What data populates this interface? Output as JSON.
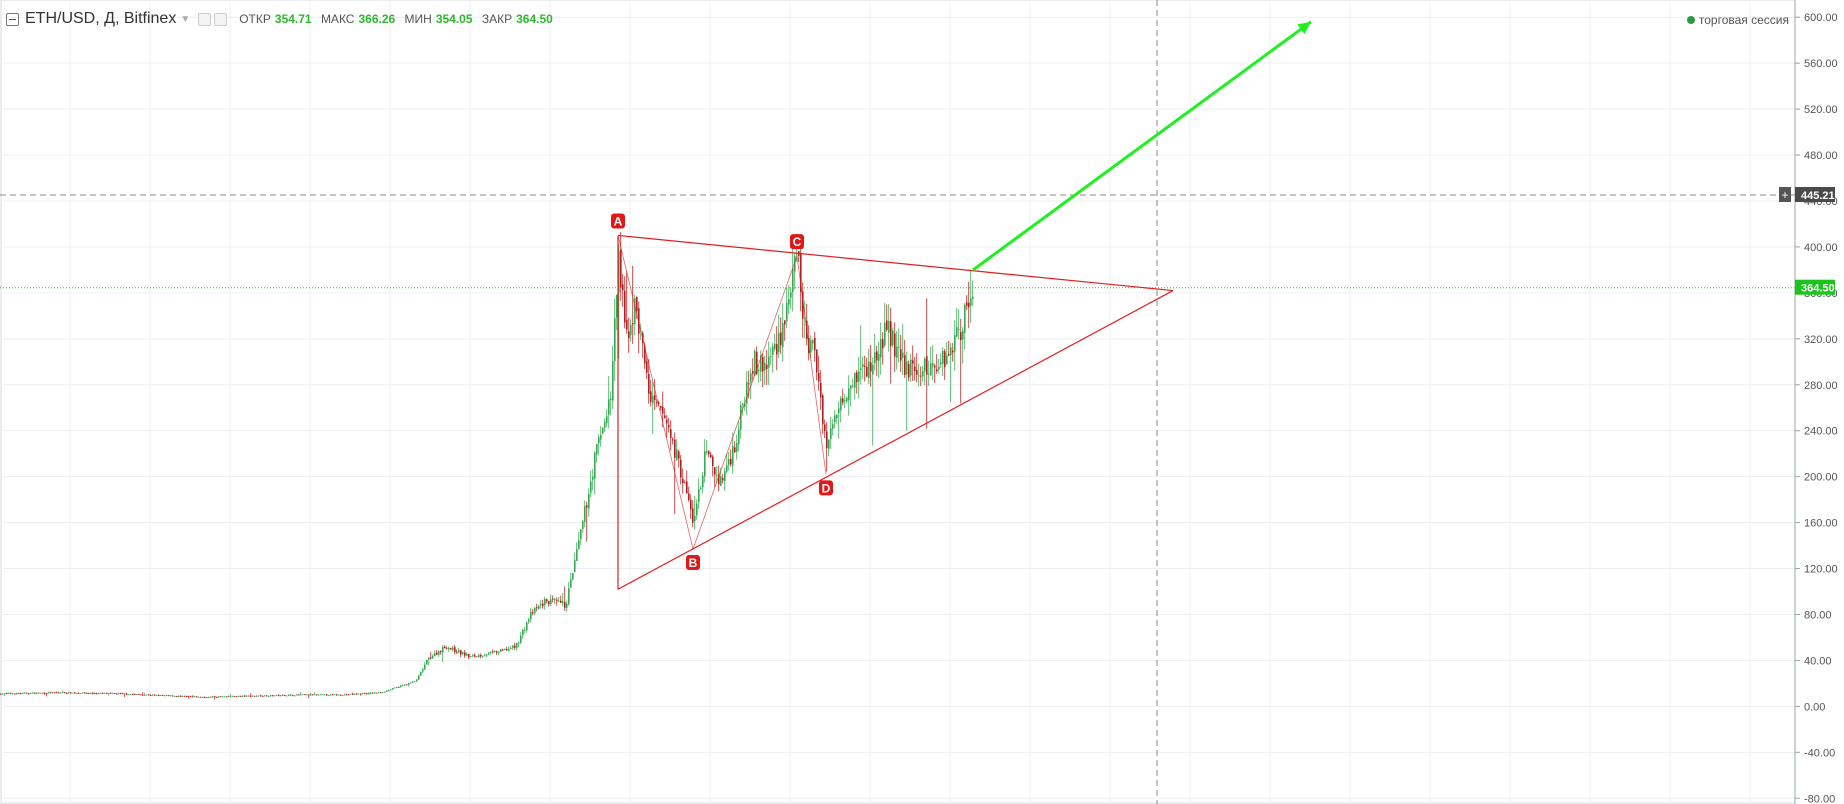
{
  "header": {
    "symbol": "ETH/USD, Д, Bitfinex",
    "ohlc": [
      {
        "label": "ОТКР",
        "value": "354.71"
      },
      {
        "label": "МАКС",
        "value": "366.26"
      },
      {
        "label": "МИН",
        "value": "354.05"
      },
      {
        "label": "ЗАКР",
        "value": "364.50"
      }
    ],
    "session_label": "торговая сессия"
  },
  "colors": {
    "up": "#37a853",
    "down": "#b31e1e",
    "triangle": "#e02020",
    "arrow": "#1ff01f",
    "grid": "#eceff2",
    "last_price": "#1cc51c",
    "crosshair": "#888888"
  },
  "chart_data": {
    "type": "candlestick",
    "ylim": [
      -85,
      615
    ],
    "y_ticks": [
      600,
      560,
      520,
      480,
      440,
      400,
      360,
      320,
      280,
      240,
      200,
      160,
      120,
      80,
      40,
      0,
      -40,
      -80
    ],
    "y_tick_labels": [
      "600.00",
      "560.00",
      "520.00",
      "480.00",
      "440.00",
      "400.00",
      "360.00",
      "320.00",
      "280.00",
      "240.00",
      "200.00",
      "160.00",
      "120.00",
      "80.00",
      "40.00",
      "0.00",
      "-40.00",
      "-80.00"
    ],
    "last_price": {
      "value": 364.5,
      "label": "364.50"
    },
    "crosshair_price": {
      "value": 445.21,
      "label": "445.21"
    },
    "price_path": [
      [
        0,
        11
      ],
      [
        60,
        12
      ],
      [
        120,
        11
      ],
      [
        200,
        8
      ],
      [
        250,
        9
      ],
      [
        300,
        10
      ],
      [
        340,
        10
      ],
      [
        380,
        12
      ],
      [
        415,
        22
      ],
      [
        428,
        42
      ],
      [
        445,
        52
      ],
      [
        470,
        43
      ],
      [
        500,
        48
      ],
      [
        515,
        52
      ],
      [
        530,
        80
      ],
      [
        545,
        92
      ],
      [
        565,
        88
      ],
      [
        580,
        150
      ],
      [
        595,
        220
      ],
      [
        610,
        270
      ],
      [
        618,
        390
      ],
      [
        625,
        320
      ],
      [
        635,
        350
      ],
      [
        650,
        265
      ],
      [
        665,
        250
      ],
      [
        680,
        205
      ],
      [
        693,
        160
      ],
      [
        705,
        220
      ],
      [
        720,
        195
      ],
      [
        735,
        230
      ],
      [
        750,
        300
      ],
      [
        765,
        295
      ],
      [
        780,
        325
      ],
      [
        797,
        390
      ],
      [
        805,
        320
      ],
      [
        815,
        305
      ],
      [
        826,
        225
      ],
      [
        840,
        270
      ],
      [
        855,
        290
      ],
      [
        870,
        295
      ],
      [
        887,
        330
      ],
      [
        900,
        300
      ],
      [
        915,
        290
      ],
      [
        930,
        295
      ],
      [
        945,
        305
      ],
      [
        960,
        330
      ],
      [
        972,
        365
      ]
    ],
    "pattern_points": [
      {
        "label": "A",
        "date_index": 618,
        "value": 410
      },
      {
        "label": "B",
        "date_index": 693,
        "value": 137
      },
      {
        "label": "C",
        "date_index": 797,
        "value": 392
      },
      {
        "label": "D",
        "date_index": 826,
        "value": 202
      }
    ],
    "triangle": {
      "upper_line": [
        [
          618,
          410
        ],
        [
          1173,
          362
        ]
      ],
      "lower_line": [
        [
          618,
          102
        ],
        [
          1173,
          362
        ]
      ],
      "left_edge": [
        [
          618,
          410
        ],
        [
          618,
          102
        ]
      ]
    },
    "target_arrow": {
      "from": [
        973,
        380
      ],
      "to": [
        1311,
        596
      ]
    }
  }
}
